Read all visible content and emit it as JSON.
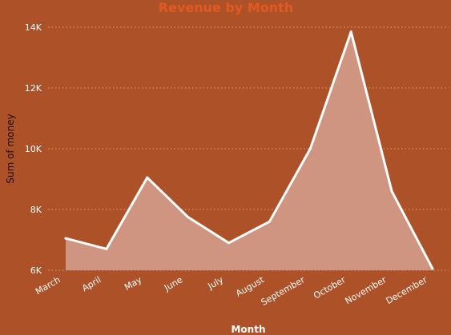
{
  "chart_data": {
    "type": "area",
    "title": "Revenue by Month",
    "xlabel": "Month",
    "ylabel": "Sum of money",
    "categories": [
      "March",
      "April",
      "May",
      "June",
      "July",
      "August",
      "September",
      "October",
      "November",
      "December"
    ],
    "values": [
      7050,
      6700,
      9050,
      7750,
      6900,
      7600,
      10000,
      13850,
      8600,
      6050
    ],
    "ylim": [
      6000,
      14000
    ],
    "yticks": [
      6000,
      8000,
      10000,
      12000,
      14000
    ],
    "ytick_labels": [
      "6K",
      "8K",
      "10K",
      "12K",
      "14K"
    ],
    "grid": true,
    "legend": "none",
    "colors": {
      "background": "#ad5128",
      "line": "#ffffff",
      "fill": "#d09580",
      "title": "#e25a22",
      "grid": "#e6b49a"
    }
  }
}
